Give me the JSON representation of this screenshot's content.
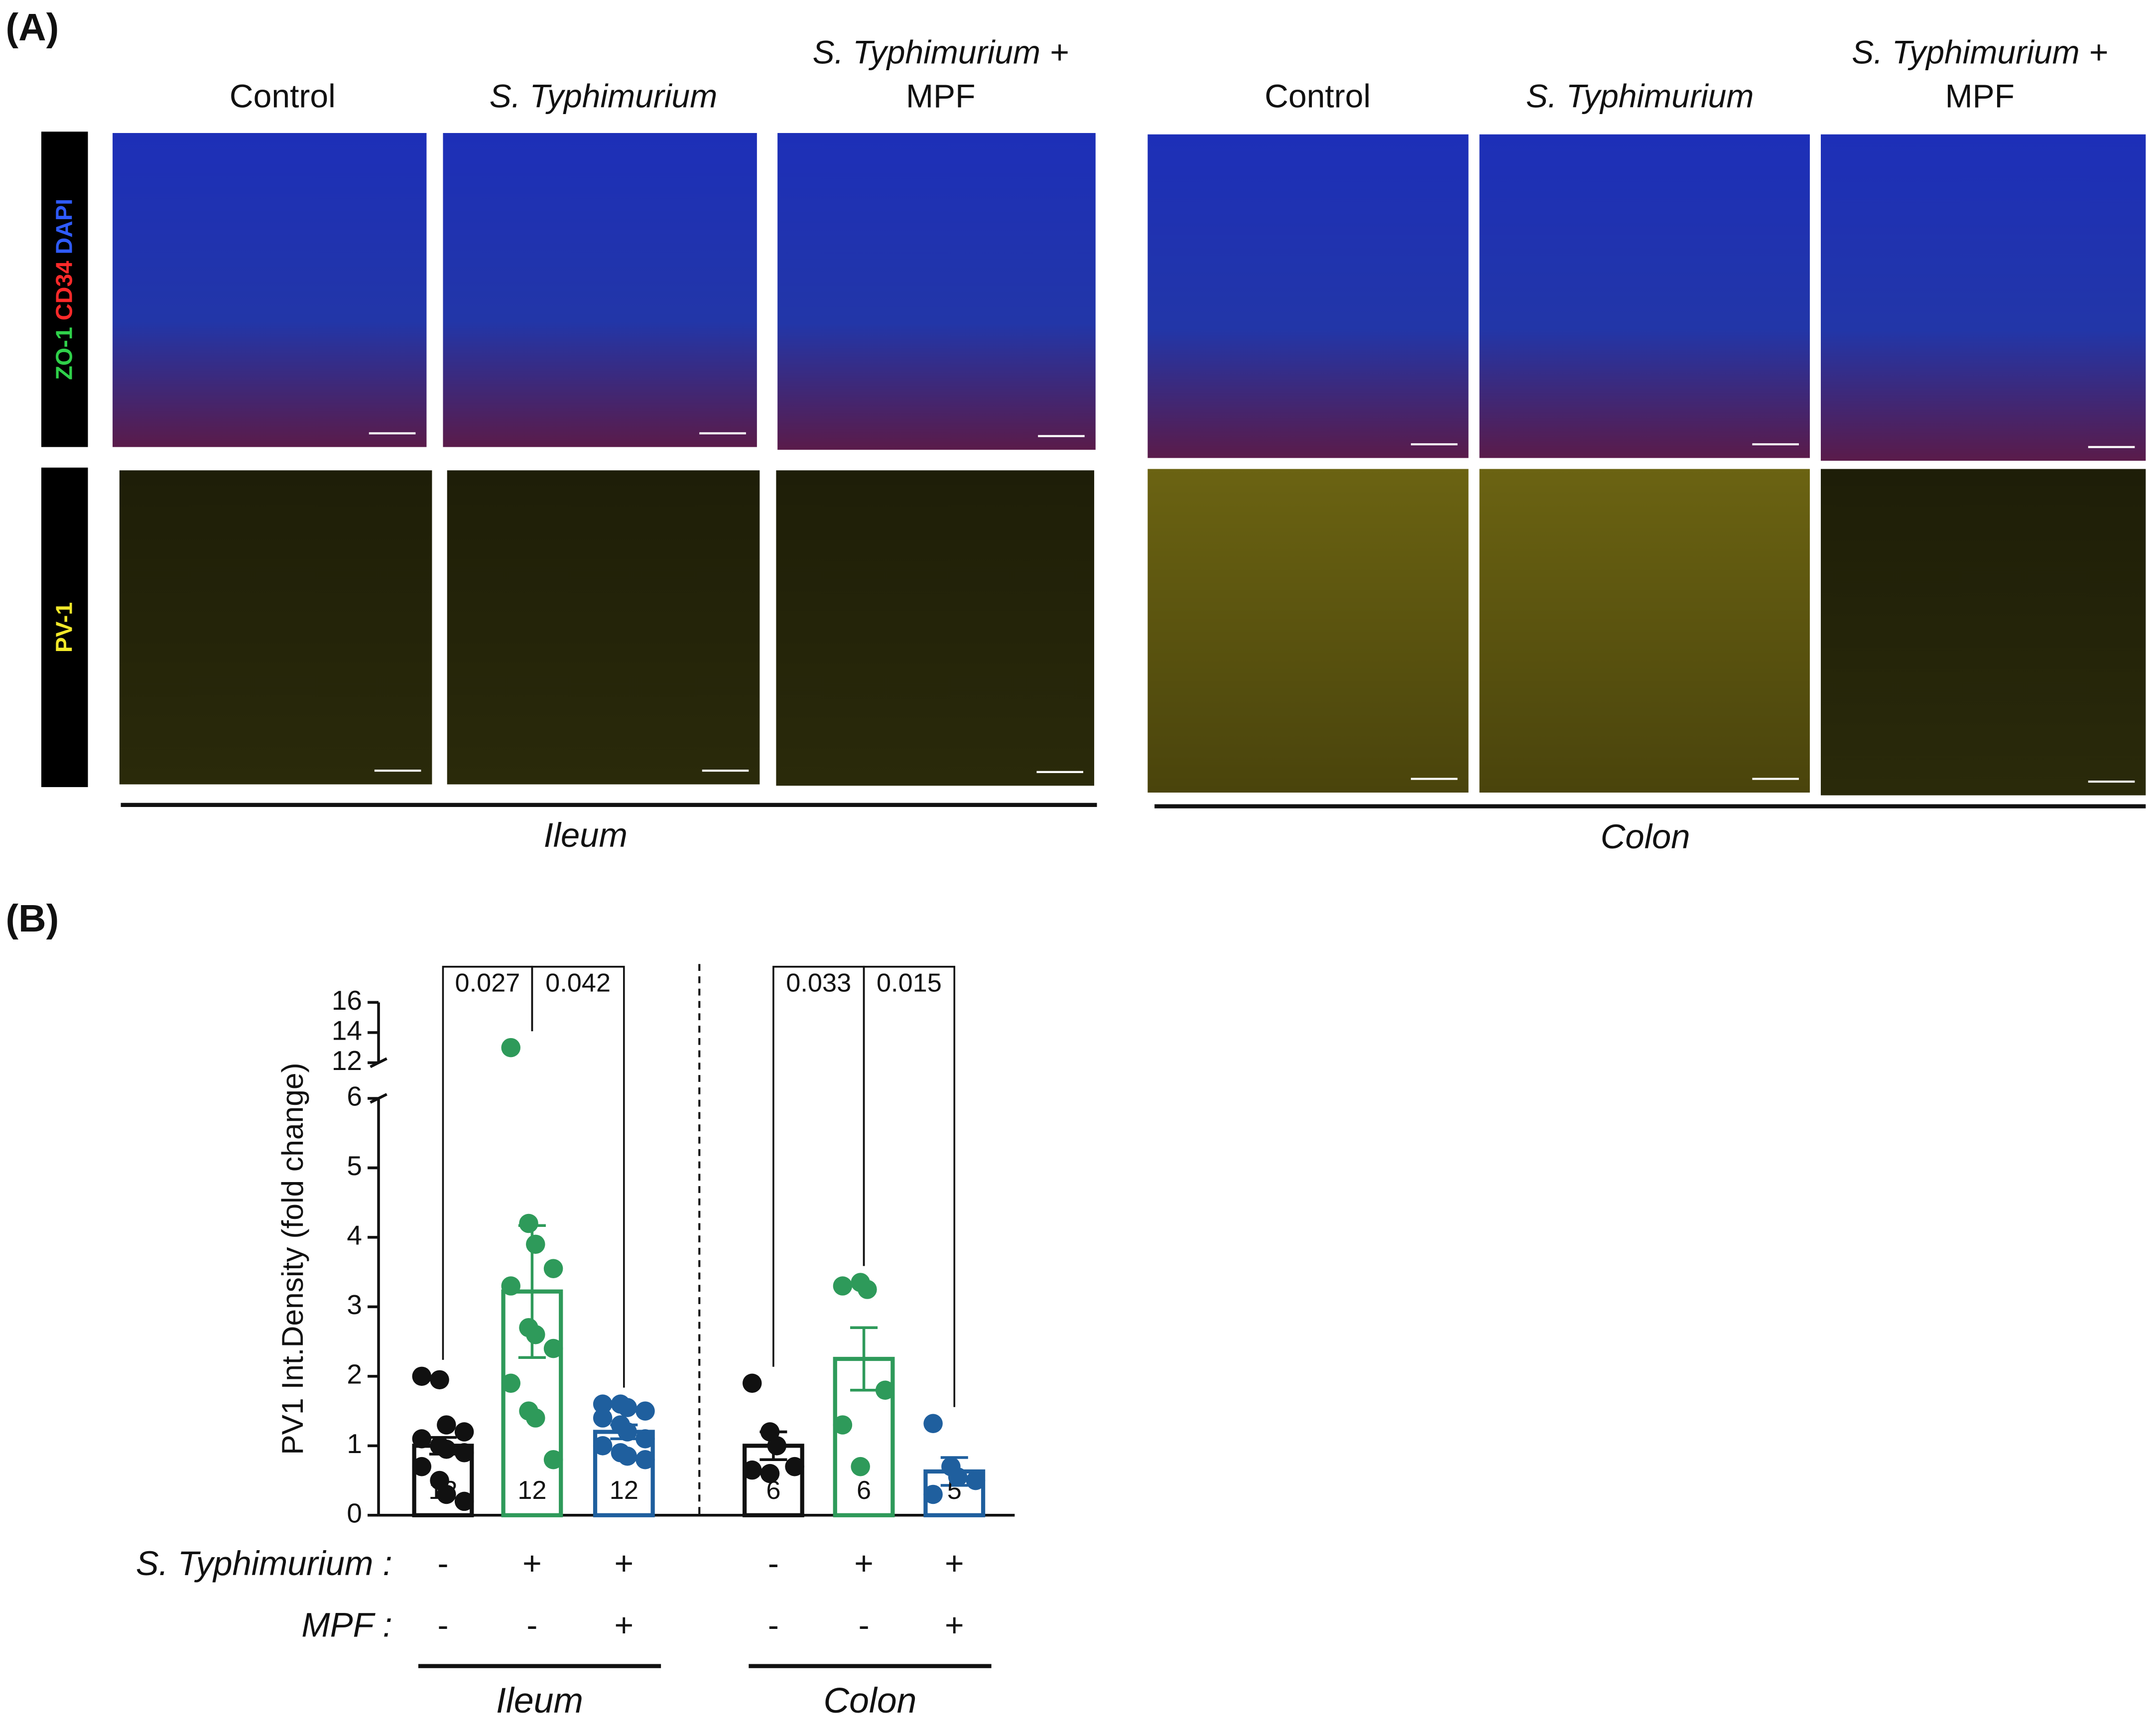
{
  "panel_labels": [
    "(A)",
    "(B)"
  ],
  "images": {
    "column_headers": [
      {
        "lines": [
          "Control"
        ],
        "italic": false
      },
      {
        "lines": [
          "S. Typhimurium"
        ],
        "italic": true
      },
      {
        "lines": [
          "S. Typhimurium +",
          "MPF"
        ],
        "italic": [
          true,
          false
        ]
      },
      {
        "lines": [
          "Control"
        ],
        "italic": false
      },
      {
        "lines": [
          "S. Typhimurium"
        ],
        "italic": true
      },
      {
        "lines": [
          "S. Typhimurium +",
          "MPF"
        ],
        "italic": [
          true,
          false
        ]
      }
    ],
    "row_labels": [
      [
        "ZO-1",
        "CD34",
        "DAPI"
      ],
      [
        "PV-1"
      ]
    ],
    "row_label_colors": [
      [
        "#2fd14a",
        "#ff2a2a",
        "#2f5bff"
      ],
      [
        "#f2e82a"
      ]
    ],
    "tissues": [
      "Ileum",
      "Colon"
    ]
  },
  "chart_data": {
    "type": "bar",
    "y_label": "PV1 Int.Density (fold change)",
    "ylim": [
      0,
      6
    ],
    "yticks": [
      0,
      1,
      2,
      3,
      4,
      5,
      6
    ],
    "ylim_upper": [
      12,
      16
    ],
    "yticks_upper": [
      12,
      14,
      16
    ],
    "bars": [
      {
        "color": "#111111",
        "value": 1.0,
        "error": 0.12,
        "n": "12",
        "points": [
          2.0,
          1.95,
          1.3,
          1.2,
          1.1,
          1.0,
          0.95,
          0.9,
          0.7,
          0.5,
          0.3,
          0.2
        ]
      },
      {
        "color": "#2e9a5a",
        "value": 3.22,
        "error": 0.95,
        "n": "12",
        "points": [
          13.0,
          4.2,
          3.9,
          3.55,
          3.3,
          2.7,
          2.6,
          2.4,
          1.9,
          1.5,
          1.4,
          0.8
        ]
      },
      {
        "color": "#1f5f9e",
        "value": 1.2,
        "error": 0.1,
        "n": "12",
        "points": [
          1.6,
          1.6,
          1.55,
          1.5,
          1.4,
          1.3,
          1.2,
          1.1,
          1.0,
          0.9,
          0.85,
          0.8
        ]
      },
      {
        "color": "#111111",
        "value": 1.0,
        "error": 0.2,
        "n": "6",
        "points": [
          1.9,
          1.2,
          1.0,
          0.7,
          0.65,
          0.6
        ]
      },
      {
        "color": "#2e9a5a",
        "value": 2.25,
        "error": 0.45,
        "n": "6",
        "points": [
          3.3,
          3.35,
          3.25,
          1.8,
          1.3,
          0.7
        ]
      },
      {
        "color": "#1f5f9e",
        "value": 0.63,
        "error": 0.2,
        "n": "5",
        "points": [
          1.32,
          0.7,
          0.55,
          0.5,
          0.3
        ]
      }
    ],
    "comparisons": [
      {
        "bars": [
          0,
          1
        ],
        "label": "0.027"
      },
      {
        "bars": [
          1,
          2
        ],
        "label": "0.042"
      },
      {
        "bars": [
          3,
          4
        ],
        "label": "0.033"
      },
      {
        "bars": [
          4,
          5
        ],
        "label": "0.015"
      }
    ],
    "condition_rows": [
      {
        "label": "S. Typhimurium :",
        "signs": [
          "-",
          "+",
          "+",
          "-",
          "+",
          "+"
        ]
      },
      {
        "label": "MPF :",
        "signs": [
          "-",
          "-",
          "+",
          "-",
          "-",
          "+"
        ]
      }
    ],
    "groups": [
      "Ileum",
      "Colon"
    ]
  }
}
